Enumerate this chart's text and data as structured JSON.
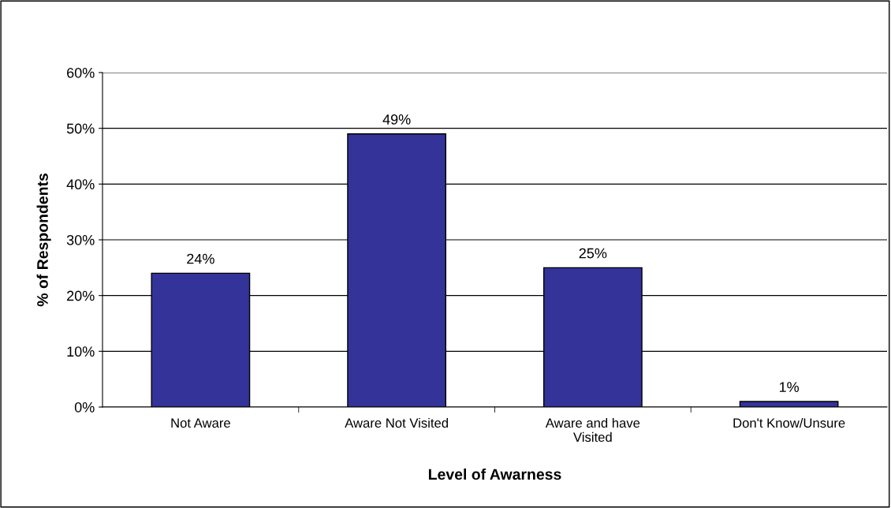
{
  "chart_data": {
    "type": "bar",
    "xlabel": "Level of Awarness",
    "ylabel": "% of Respondents",
    "categories": [
      "Not Aware",
      "Aware Not Visited",
      "Aware and have\nVisited",
      "Don't Know/Unsure"
    ],
    "values": [
      24,
      49,
      25,
      1
    ],
    "color": "#333399",
    "ylim": [
      0,
      60
    ],
    "yticks": [
      {
        "value": 0,
        "label": "0%"
      },
      {
        "value": 10,
        "label": "10%"
      },
      {
        "value": 20,
        "label": "20%"
      },
      {
        "value": 30,
        "label": "30%"
      },
      {
        "value": 40,
        "label": "40%"
      },
      {
        "value": 50,
        "label": "50%"
      },
      {
        "value": 60,
        "label": "60%"
      }
    ],
    "value_labels": [
      "24%",
      "49%",
      "25%",
      "1%"
    ],
    "grid": "y",
    "legend": false
  }
}
